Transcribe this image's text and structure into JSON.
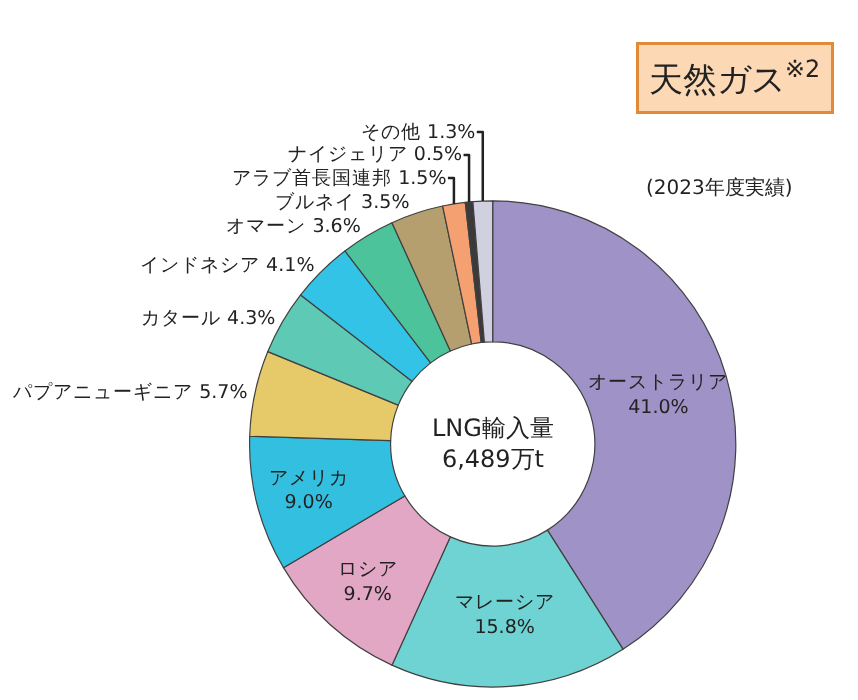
{
  "chart_data": {
    "type": "donut",
    "title": "天然ガス$^{※2}$",
    "subtitle": "(2023年度実績)",
    "annotations": [
      "LNG輸入量\n6,489万t"
    ],
    "categories": [
      "オーストラリア",
      "マレーシア",
      "ロシア",
      "アメリカ",
      "パプアニューギニア",
      "カタール",
      "インドネシア",
      "オマーン",
      "ブルネイ",
      "アラブ首長国連邦",
      "ナイジェリア",
      "その他"
    ],
    "values": [
      41.0,
      15.8,
      9.7,
      9.0,
      5.7,
      4.3,
      4.1,
      3.6,
      3.5,
      1.5,
      0.5,
      1.3
    ],
    "value_labels": [
      "41.0%",
      "15.8%",
      "9.7%",
      "9.0%",
      "5.7%",
      "4.3%",
      "4.1%",
      "3.6%",
      "3.5%",
      "1.5%",
      "0.5%",
      "1.3%"
    ],
    "colors": [
      "#9f92c6",
      "#6fd3d3",
      "#e3a7c6",
      "#33bfe0",
      "#e6ca6a",
      "#5ec9b5",
      "#33c3e6",
      "#4cc39a",
      "#b59f6e",
      "#f5a070",
      "#3a3a3a",
      "#d0d0e0"
    ],
    "legend": false
  }
}
